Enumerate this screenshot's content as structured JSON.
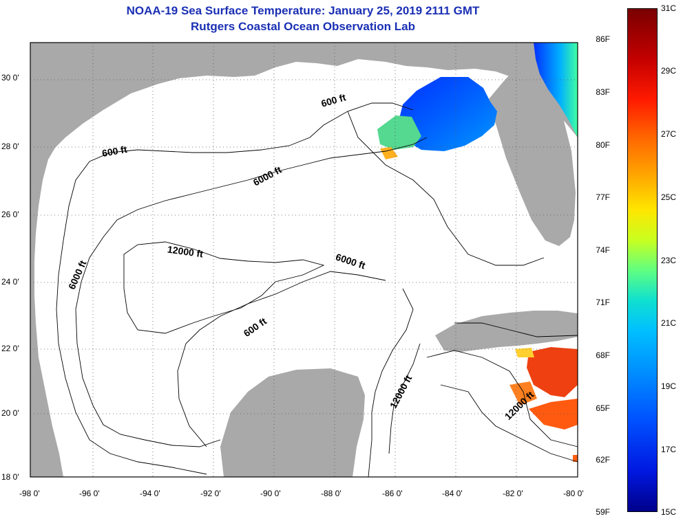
{
  "title": {
    "line1": "NOAA-19 Sea Surface Temperature:  January 25, 2019 2111 GMT",
    "line2": "Rutgers Coastal Ocean Observation Lab"
  },
  "axes": {
    "latitude_labels": [
      "30 0'",
      "28 0'",
      "26 0'",
      "24 0'",
      "22 0'",
      "20 0'",
      "18 0'"
    ],
    "longitude_labels": [
      "-98 0'",
      "-96 0'",
      "-94 0'",
      "-92 0'",
      "-90 0'",
      "-88 0'",
      "-86 0'",
      "-84 0'",
      "-82 0'",
      "-80 0'"
    ]
  },
  "contour_labels": {
    "c600_north": "600 ft",
    "c600_west": "600 ft",
    "c600_south": "600 ft",
    "c6000_north": "6000 ft",
    "c6000_west": "6000 ft",
    "c6000_center": "6000 ft",
    "c12000_center": "12000 ft",
    "c12000_channel": "12000 ft",
    "c12000_caribbean": "12000 ft"
  },
  "colorbar": {
    "fahrenheit": [
      "86F",
      "83F",
      "80F",
      "77F",
      "74F",
      "71F",
      "68F",
      "65F",
      "62F",
      "59F"
    ],
    "celsius": [
      "31C",
      "29C",
      "27C",
      "25C",
      "23C",
      "21C",
      "19C",
      "17C",
      "15C"
    ]
  },
  "colors": {
    "land": "#a9a9a9",
    "ocean": "#ffffff",
    "title": "#1a2fb4"
  }
}
